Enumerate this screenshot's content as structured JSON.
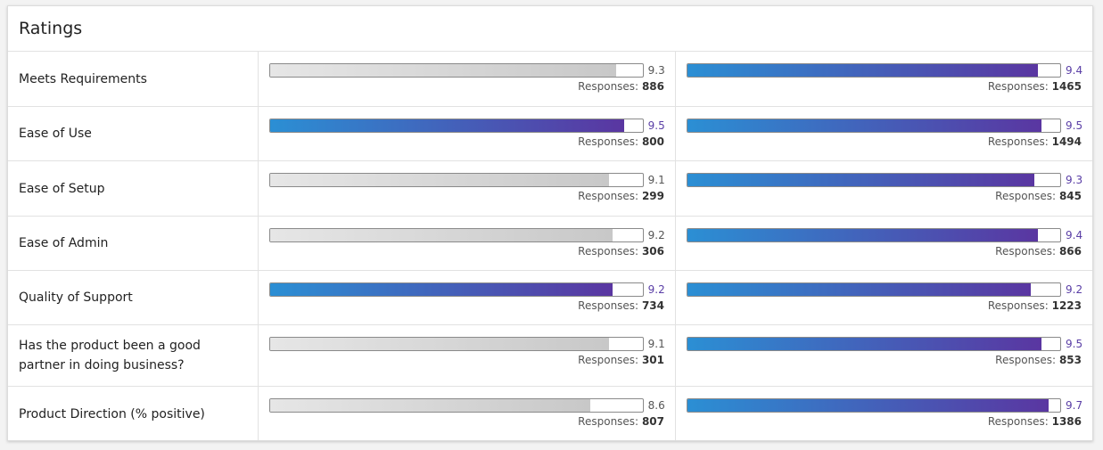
{
  "card": {
    "title": "Ratings"
  },
  "responses_label": "Responses:",
  "colors": {
    "highlight_gradient_start": "#2b8fd4",
    "highlight_gradient_end": "#5a36a1",
    "neutral_bar": "#cccccc"
  },
  "rows": [
    {
      "label": "Meets Requirements",
      "left": {
        "score": "9.3",
        "responses": "886",
        "highlight": false
      },
      "right": {
        "score": "9.4",
        "responses": "1465",
        "highlight": true
      }
    },
    {
      "label": "Ease of Use",
      "left": {
        "score": "9.5",
        "responses": "800",
        "highlight": true
      },
      "right": {
        "score": "9.5",
        "responses": "1494",
        "highlight": true
      }
    },
    {
      "label": "Ease of Setup",
      "left": {
        "score": "9.1",
        "responses": "299",
        "highlight": false
      },
      "right": {
        "score": "9.3",
        "responses": "845",
        "highlight": true
      }
    },
    {
      "label": "Ease of Admin",
      "left": {
        "score": "9.2",
        "responses": "306",
        "highlight": false
      },
      "right": {
        "score": "9.4",
        "responses": "866",
        "highlight": true
      }
    },
    {
      "label": "Quality of Support",
      "left": {
        "score": "9.2",
        "responses": "734",
        "highlight": true
      },
      "right": {
        "score": "9.2",
        "responses": "1223",
        "highlight": true
      }
    },
    {
      "label": "Has the product been a good partner in doing business?",
      "left": {
        "score": "9.1",
        "responses": "301",
        "highlight": false
      },
      "right": {
        "score": "9.5",
        "responses": "853",
        "highlight": true
      }
    },
    {
      "label": "Product Direction (% positive)",
      "left": {
        "score": "8.6",
        "responses": "807",
        "highlight": false
      },
      "right": {
        "score": "9.7",
        "responses": "1386",
        "highlight": true
      }
    }
  ]
}
